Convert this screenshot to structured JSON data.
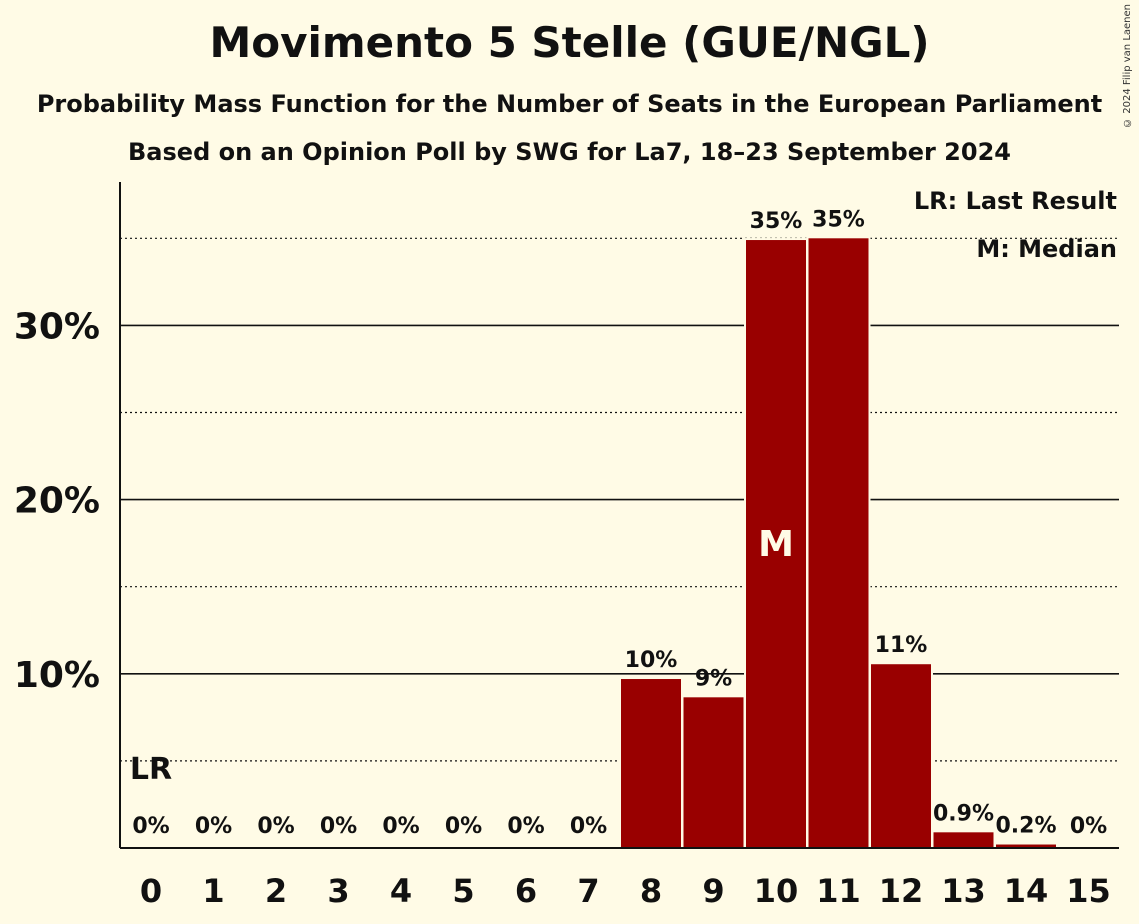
{
  "chart_data": {
    "type": "bar",
    "title": "Movimento 5 Stelle (GUE/NGL)",
    "subtitle": "Probability Mass Function for the Number of Seats in the European Parliament",
    "subtitle2": "Based on an Opinion Poll by SWG for La7, 18–23 September 2024",
    "copyright": "© 2024 Filip van Laenen",
    "categories": [
      "0",
      "1",
      "2",
      "3",
      "4",
      "5",
      "6",
      "7",
      "8",
      "9",
      "10",
      "11",
      "12",
      "13",
      "14",
      "15"
    ],
    "values": [
      0,
      0,
      0,
      0,
      0,
      0,
      0,
      0,
      9.7,
      8.65,
      34.9,
      35.0,
      10.55,
      0.9,
      0.2,
      0
    ],
    "labels": [
      "0%",
      "0%",
      "0%",
      "0%",
      "0%",
      "0%",
      "0%",
      "0%",
      "10%",
      "9%",
      "35%",
      "35%",
      "11%",
      "0.9%",
      "0.2%",
      "0%"
    ],
    "ylim": [
      0,
      38
    ],
    "yticks": [
      10,
      20,
      30
    ],
    "ytick_labels": [
      "10%",
      "20%",
      "30%"
    ],
    "minor_gridlines": [
      5,
      15,
      25,
      35
    ],
    "bar_color": "#990000",
    "last_result_index": 0,
    "last_result_marker": "LR",
    "median_index": 10,
    "median_marker": "M",
    "legend": [
      "LR: Last Result",
      "M: Median"
    ],
    "legend_position": "top-right"
  }
}
